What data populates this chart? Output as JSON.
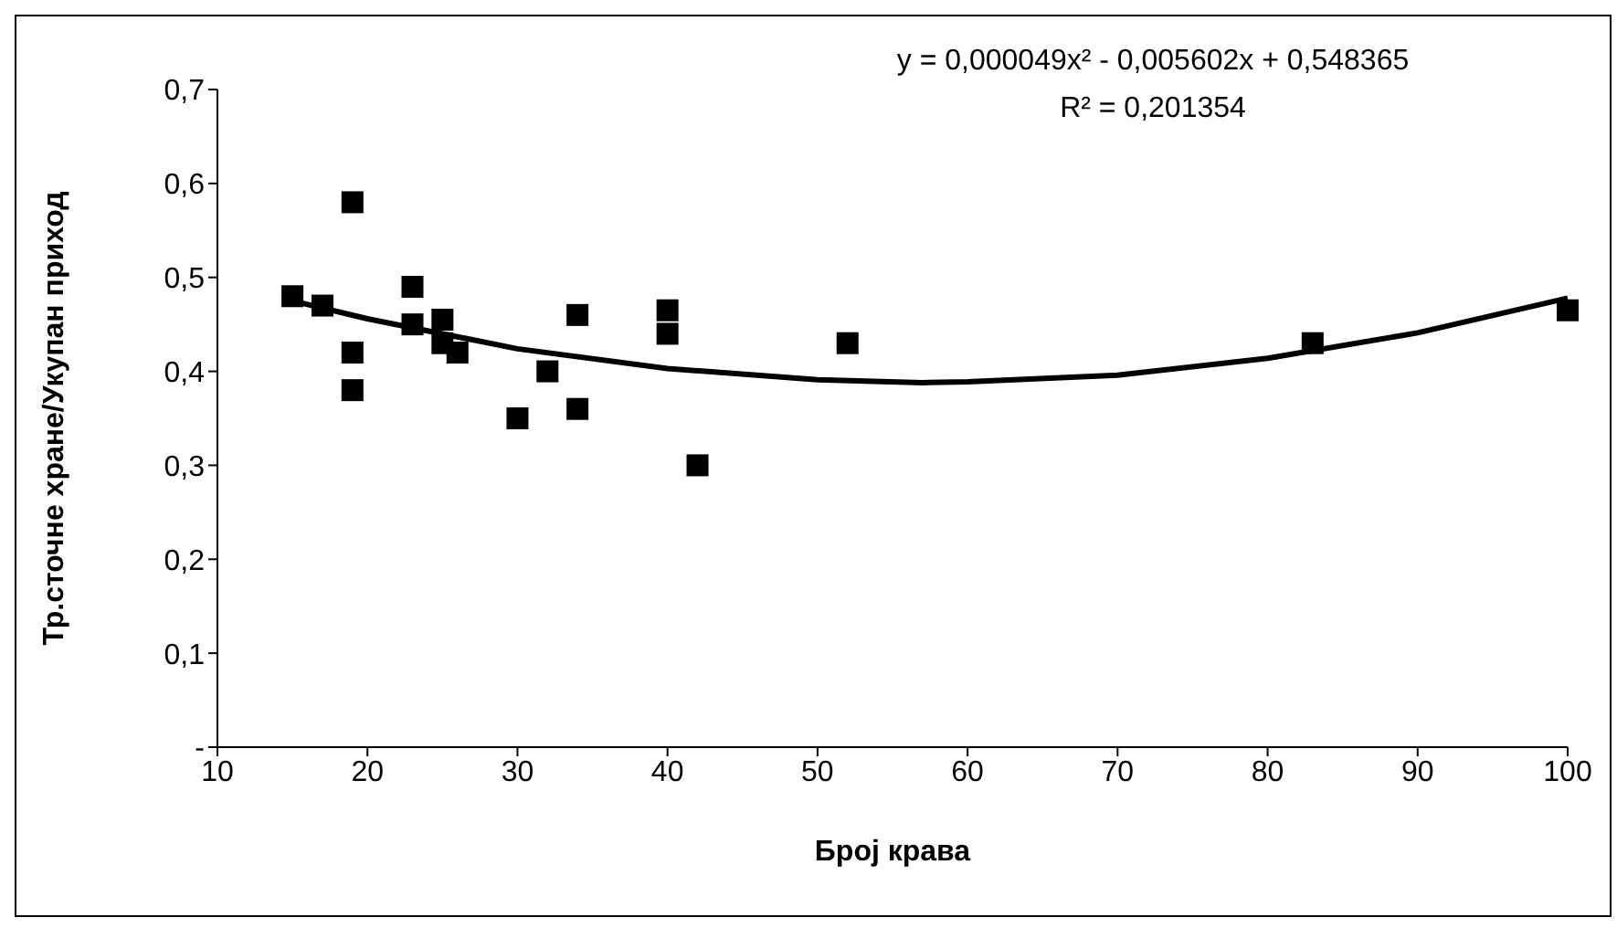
{
  "chart_data": {
    "type": "scatter",
    "xlabel": "Број крава",
    "ylabel": "Тр.сточне хране/Укупан приход",
    "series": [
      {
        "color": "#000000",
        "marker": "square",
        "x": [
          15,
          17,
          19,
          19,
          19,
          23,
          23,
          25,
          25,
          26,
          30,
          32,
          34,
          34,
          40,
          40,
          42,
          52,
          83,
          100
        ],
        "values": [
          0.48,
          0.47,
          0.58,
          0.42,
          0.38,
          0.49,
          0.45,
          0.455,
          0.43,
          0.42,
          0.35,
          0.4,
          0.46,
          0.36,
          0.465,
          0.44,
          0.3,
          0.43,
          0.43,
          0.465
        ]
      },
      {
        "type": "line",
        "color": "#000000",
        "marker": "none",
        "line_style": "solid",
        "x": [
          15,
          20,
          30,
          40,
          50,
          57,
          60,
          70,
          80,
          90,
          100
        ],
        "values": [
          0.475,
          0.456,
          0.424,
          0.403,
          0.391,
          0.388,
          0.389,
          0.396,
          0.414,
          0.441,
          0.478
        ]
      }
    ],
    "xlim": [
      10,
      100
    ],
    "xticks": [
      10,
      20,
      30,
      40,
      50,
      60,
      70,
      80,
      90,
      100
    ],
    "ylim": [
      0,
      0.7
    ],
    "yticks": [
      {
        "value": 0,
        "label": "-"
      },
      {
        "value": 0.1,
        "label": "0,1"
      },
      {
        "value": 0.2,
        "label": "0,2"
      },
      {
        "value": 0.3,
        "label": "0,3"
      },
      {
        "value": 0.4,
        "label": "0,4"
      },
      {
        "value": 0.5,
        "label": "0,5"
      },
      {
        "value": 0.6,
        "label": "0,6"
      },
      {
        "value": 0.7,
        "label": "0,7"
      }
    ],
    "grid": false,
    "legend": false,
    "annotations": [
      "y = 0,000049x² - 0,005602x + 0,548365",
      "R² = 0,201354"
    ]
  }
}
